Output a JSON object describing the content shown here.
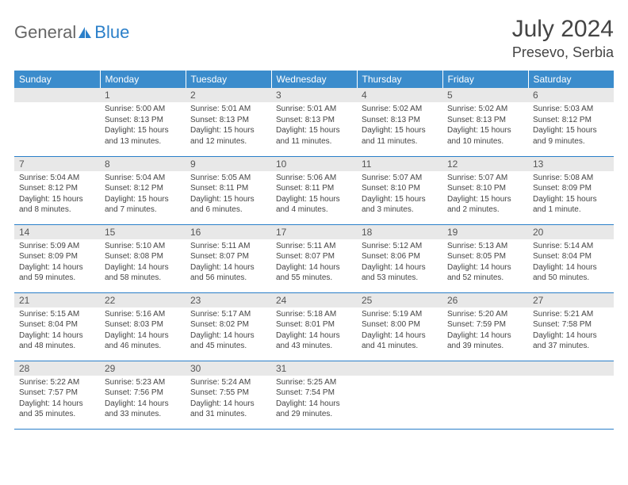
{
  "logo": {
    "general": "General",
    "blue": "Blue"
  },
  "title": "July 2024",
  "location": "Presevo, Serbia",
  "colors": {
    "header_bg": "#3b8ccc",
    "header_text": "#ffffff",
    "accent_blue": "#2a7fc9",
    "daynum_bg": "#e8e8e8",
    "text": "#444444"
  },
  "day_headers": [
    "Sunday",
    "Monday",
    "Tuesday",
    "Wednesday",
    "Thursday",
    "Friday",
    "Saturday"
  ],
  "weeks": [
    [
      {
        "n": "",
        "lines": []
      },
      {
        "n": "1",
        "lines": [
          "Sunrise: 5:00 AM",
          "Sunset: 8:13 PM",
          "Daylight: 15 hours",
          "and 13 minutes."
        ]
      },
      {
        "n": "2",
        "lines": [
          "Sunrise: 5:01 AM",
          "Sunset: 8:13 PM",
          "Daylight: 15 hours",
          "and 12 minutes."
        ]
      },
      {
        "n": "3",
        "lines": [
          "Sunrise: 5:01 AM",
          "Sunset: 8:13 PM",
          "Daylight: 15 hours",
          "and 11 minutes."
        ]
      },
      {
        "n": "4",
        "lines": [
          "Sunrise: 5:02 AM",
          "Sunset: 8:13 PM",
          "Daylight: 15 hours",
          "and 11 minutes."
        ]
      },
      {
        "n": "5",
        "lines": [
          "Sunrise: 5:02 AM",
          "Sunset: 8:13 PM",
          "Daylight: 15 hours",
          "and 10 minutes."
        ]
      },
      {
        "n": "6",
        "lines": [
          "Sunrise: 5:03 AM",
          "Sunset: 8:12 PM",
          "Daylight: 15 hours",
          "and 9 minutes."
        ]
      }
    ],
    [
      {
        "n": "7",
        "lines": [
          "Sunrise: 5:04 AM",
          "Sunset: 8:12 PM",
          "Daylight: 15 hours",
          "and 8 minutes."
        ]
      },
      {
        "n": "8",
        "lines": [
          "Sunrise: 5:04 AM",
          "Sunset: 8:12 PM",
          "Daylight: 15 hours",
          "and 7 minutes."
        ]
      },
      {
        "n": "9",
        "lines": [
          "Sunrise: 5:05 AM",
          "Sunset: 8:11 PM",
          "Daylight: 15 hours",
          "and 6 minutes."
        ]
      },
      {
        "n": "10",
        "lines": [
          "Sunrise: 5:06 AM",
          "Sunset: 8:11 PM",
          "Daylight: 15 hours",
          "and 4 minutes."
        ]
      },
      {
        "n": "11",
        "lines": [
          "Sunrise: 5:07 AM",
          "Sunset: 8:10 PM",
          "Daylight: 15 hours",
          "and 3 minutes."
        ]
      },
      {
        "n": "12",
        "lines": [
          "Sunrise: 5:07 AM",
          "Sunset: 8:10 PM",
          "Daylight: 15 hours",
          "and 2 minutes."
        ]
      },
      {
        "n": "13",
        "lines": [
          "Sunrise: 5:08 AM",
          "Sunset: 8:09 PM",
          "Daylight: 15 hours",
          "and 1 minute."
        ]
      }
    ],
    [
      {
        "n": "14",
        "lines": [
          "Sunrise: 5:09 AM",
          "Sunset: 8:09 PM",
          "Daylight: 14 hours",
          "and 59 minutes."
        ]
      },
      {
        "n": "15",
        "lines": [
          "Sunrise: 5:10 AM",
          "Sunset: 8:08 PM",
          "Daylight: 14 hours",
          "and 58 minutes."
        ]
      },
      {
        "n": "16",
        "lines": [
          "Sunrise: 5:11 AM",
          "Sunset: 8:07 PM",
          "Daylight: 14 hours",
          "and 56 minutes."
        ]
      },
      {
        "n": "17",
        "lines": [
          "Sunrise: 5:11 AM",
          "Sunset: 8:07 PM",
          "Daylight: 14 hours",
          "and 55 minutes."
        ]
      },
      {
        "n": "18",
        "lines": [
          "Sunrise: 5:12 AM",
          "Sunset: 8:06 PM",
          "Daylight: 14 hours",
          "and 53 minutes."
        ]
      },
      {
        "n": "19",
        "lines": [
          "Sunrise: 5:13 AM",
          "Sunset: 8:05 PM",
          "Daylight: 14 hours",
          "and 52 minutes."
        ]
      },
      {
        "n": "20",
        "lines": [
          "Sunrise: 5:14 AM",
          "Sunset: 8:04 PM",
          "Daylight: 14 hours",
          "and 50 minutes."
        ]
      }
    ],
    [
      {
        "n": "21",
        "lines": [
          "Sunrise: 5:15 AM",
          "Sunset: 8:04 PM",
          "Daylight: 14 hours",
          "and 48 minutes."
        ]
      },
      {
        "n": "22",
        "lines": [
          "Sunrise: 5:16 AM",
          "Sunset: 8:03 PM",
          "Daylight: 14 hours",
          "and 46 minutes."
        ]
      },
      {
        "n": "23",
        "lines": [
          "Sunrise: 5:17 AM",
          "Sunset: 8:02 PM",
          "Daylight: 14 hours",
          "and 45 minutes."
        ]
      },
      {
        "n": "24",
        "lines": [
          "Sunrise: 5:18 AM",
          "Sunset: 8:01 PM",
          "Daylight: 14 hours",
          "and 43 minutes."
        ]
      },
      {
        "n": "25",
        "lines": [
          "Sunrise: 5:19 AM",
          "Sunset: 8:00 PM",
          "Daylight: 14 hours",
          "and 41 minutes."
        ]
      },
      {
        "n": "26",
        "lines": [
          "Sunrise: 5:20 AM",
          "Sunset: 7:59 PM",
          "Daylight: 14 hours",
          "and 39 minutes."
        ]
      },
      {
        "n": "27",
        "lines": [
          "Sunrise: 5:21 AM",
          "Sunset: 7:58 PM",
          "Daylight: 14 hours",
          "and 37 minutes."
        ]
      }
    ],
    [
      {
        "n": "28",
        "lines": [
          "Sunrise: 5:22 AM",
          "Sunset: 7:57 PM",
          "Daylight: 14 hours",
          "and 35 minutes."
        ]
      },
      {
        "n": "29",
        "lines": [
          "Sunrise: 5:23 AM",
          "Sunset: 7:56 PM",
          "Daylight: 14 hours",
          "and 33 minutes."
        ]
      },
      {
        "n": "30",
        "lines": [
          "Sunrise: 5:24 AM",
          "Sunset: 7:55 PM",
          "Daylight: 14 hours",
          "and 31 minutes."
        ]
      },
      {
        "n": "31",
        "lines": [
          "Sunrise: 5:25 AM",
          "Sunset: 7:54 PM",
          "Daylight: 14 hours",
          "and 29 minutes."
        ]
      },
      {
        "n": "",
        "lines": []
      },
      {
        "n": "",
        "lines": []
      },
      {
        "n": "",
        "lines": []
      }
    ]
  ]
}
